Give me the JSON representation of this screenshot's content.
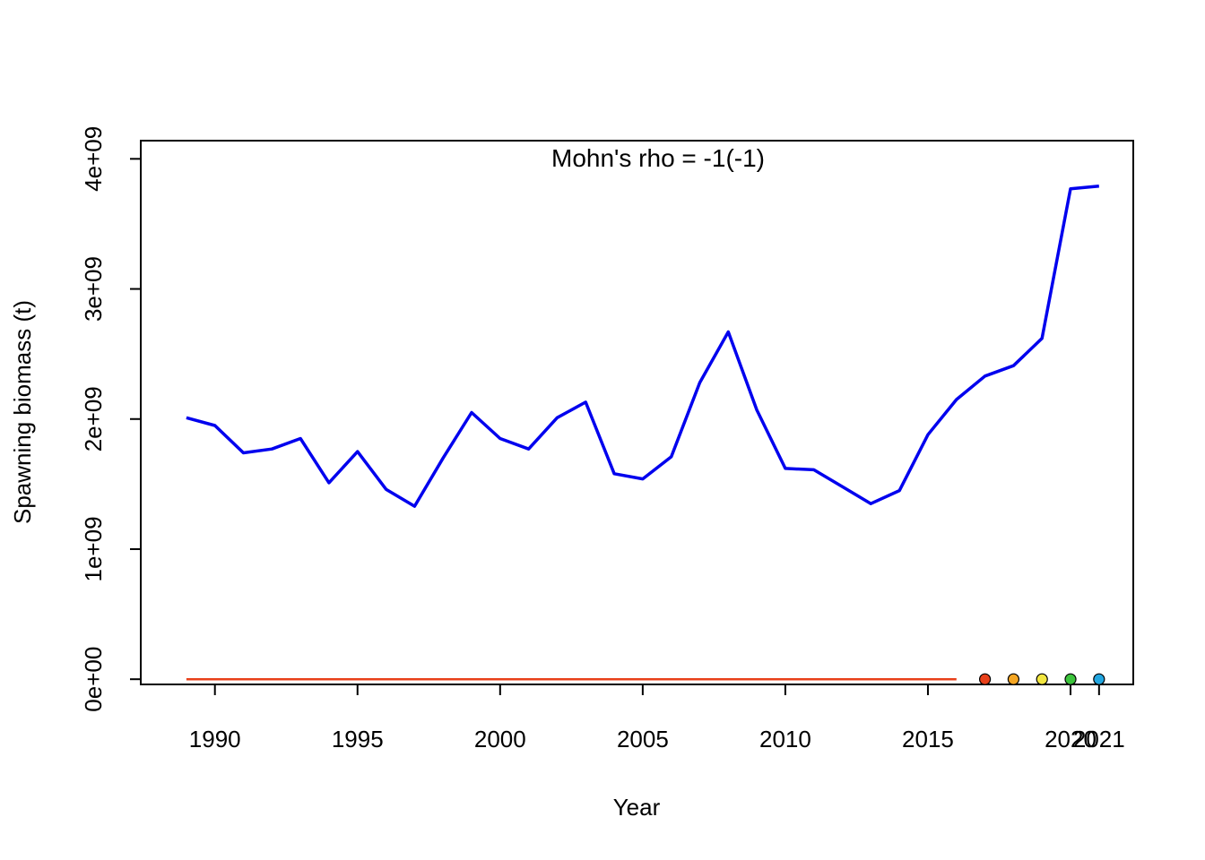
{
  "chart_data": {
    "type": "line",
    "title": "",
    "annotation": "Mohn's rho = -1(-1)",
    "xlabel": "Year",
    "ylabel": "Spawning biomass (t)",
    "xlim": [
      1987.4,
      2022.2
    ],
    "ylim": [
      -40000000.0,
      4140000000.0
    ],
    "x_ticks": [
      1990,
      1995,
      2000,
      2005,
      2010,
      2015,
      2020,
      2021
    ],
    "x_tick_labels": [
      "1990",
      "1995",
      "2000",
      "2005",
      "2010",
      "2015",
      "2020",
      "2021"
    ],
    "y_ticks": [
      0,
      1000000000,
      2000000000,
      3000000000,
      4000000000
    ],
    "y_tick_labels": [
      "0e+00",
      "1e+09",
      "2e+09",
      "3e+09",
      "4e+09"
    ],
    "grid": false,
    "series": [
      {
        "color": "#0000ee",
        "x": [
          1989,
          1990,
          1991,
          1992,
          1993,
          1994,
          1995,
          1996,
          1997,
          1998,
          1999,
          2000,
          2001,
          2002,
          2003,
          2004,
          2005,
          2006,
          2007,
          2008,
          2009,
          2010,
          2011,
          2012,
          2013,
          2014,
          2015,
          2016,
          2017,
          2018,
          2019,
          2020,
          2021
        ],
        "y": [
          2010000000.0,
          1950000000.0,
          1740000000.0,
          1770000000.0,
          1850000000.0,
          1510000000.0,
          1750000000.0,
          1460000000.0,
          1330000000.0,
          1700000000.0,
          2050000000.0,
          1850000000.0,
          1770000000.0,
          2010000000.0,
          2130000000.0,
          1580000000.0,
          1540000000.0,
          1710000000.0,
          2280000000.0,
          2670000000.0,
          2070000000.0,
          1620000000.0,
          1610000000.0,
          1480000000.0,
          1350000000.0,
          1450000000.0,
          1880000000.0,
          2150000000.0,
          2330000000.0,
          2410000000.0,
          2620000000.0,
          3770000000.0,
          3790000000.0
        ]
      },
      {
        "color": "#e8401a",
        "x": [
          1989,
          2016
        ],
        "y": [
          0,
          0
        ]
      }
    ],
    "peel_points": [
      {
        "x": 2017,
        "y": 0,
        "color": "#e8401a"
      },
      {
        "x": 2018,
        "y": 0,
        "color": "#f5a623"
      },
      {
        "x": 2019,
        "y": 0,
        "color": "#f2e640"
      },
      {
        "x": 2020,
        "y": 0,
        "color": "#3cc43c"
      },
      {
        "x": 2021,
        "y": 0,
        "color": "#22a6e0"
      }
    ]
  }
}
